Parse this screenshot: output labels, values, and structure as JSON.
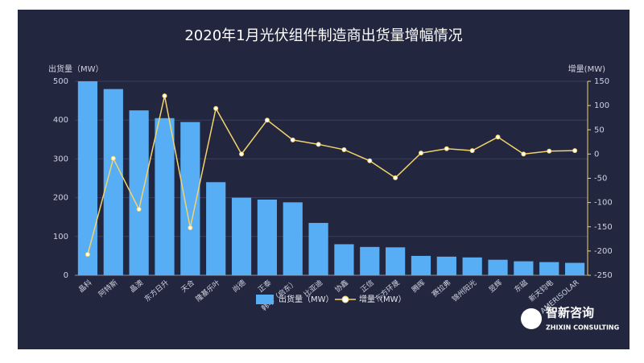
{
  "chart_data": {
    "type": "bar",
    "title": "2020年1月光伏组件制造商出货量增幅情况",
    "y_label": "出货量（MW）",
    "y2_label": "增量(MW)",
    "categories": [
      "晶科",
      "阿特斯",
      "晶澳",
      "东方日升",
      "天合",
      "隆基乐叶",
      "尚德",
      "正泰",
      "韩华（启东）",
      "比亚迪",
      "协鑫",
      "正信",
      "东方环晟",
      "腾晖",
      "赛拉弗",
      "锦州阳光",
      "昱辉",
      "东磁",
      "新天钧电",
      "AMERISOLAR"
    ],
    "series": [
      {
        "name": "出货量（MW）",
        "type": "bar",
        "color": "#58aef5",
        "values": [
          500,
          480,
          425,
          405,
          395,
          240,
          200,
          195,
          188,
          135,
          80,
          73,
          72,
          50,
          48,
          46,
          40,
          36,
          34,
          32
        ]
      },
      {
        "name": "增量（MW）",
        "type": "line",
        "axis": "y2",
        "color": "#f3d36b",
        "values": [
          -207,
          -9,
          -114,
          120,
          -152,
          94,
          0,
          70,
          29,
          20,
          9,
          -14,
          -49,
          2,
          11,
          7,
          35,
          0,
          6,
          7
        ]
      }
    ],
    "ylim": [
      0,
      500
    ],
    "yticks": [
      0,
      100,
      200,
      300,
      400,
      500
    ],
    "y2lim": [
      -250,
      150
    ],
    "y2ticks": [
      -250,
      -200,
      -150,
      -100,
      -50,
      0,
      50,
      100,
      150
    ],
    "grid": true,
    "legend": "bottom",
    "watermark": {
      "brand": "智新咨询",
      "sub": "ZHIXIN CONSULTING"
    }
  }
}
